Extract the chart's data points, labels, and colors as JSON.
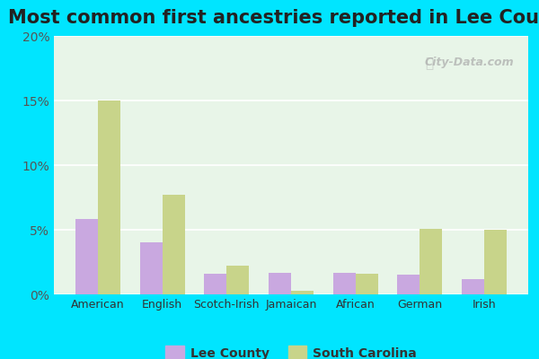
{
  "title": "Most common first ancestries reported in Lee County",
  "categories": [
    "American",
    "English",
    "Scotch-Irish",
    "Jamaican",
    "African",
    "German",
    "Irish"
  ],
  "lee_county": [
    5.8,
    4.0,
    1.6,
    1.7,
    1.7,
    1.5,
    1.2
  ],
  "south_carolina": [
    15.0,
    7.7,
    2.2,
    0.3,
    1.6,
    5.1,
    5.0
  ],
  "lee_color": "#c9a8e0",
  "sc_color": "#c8d48a",
  "ylim": [
    0,
    20
  ],
  "yticks": [
    0,
    5,
    10,
    15,
    20
  ],
  "ytick_labels": [
    "0%",
    "5%",
    "10%",
    "15%",
    "20%"
  ],
  "background_color": "#e8f5e8",
  "outer_background": "#00e5ff",
  "title_fontsize": 15,
  "bar_width": 0.35,
  "watermark": "City-Data.com"
}
